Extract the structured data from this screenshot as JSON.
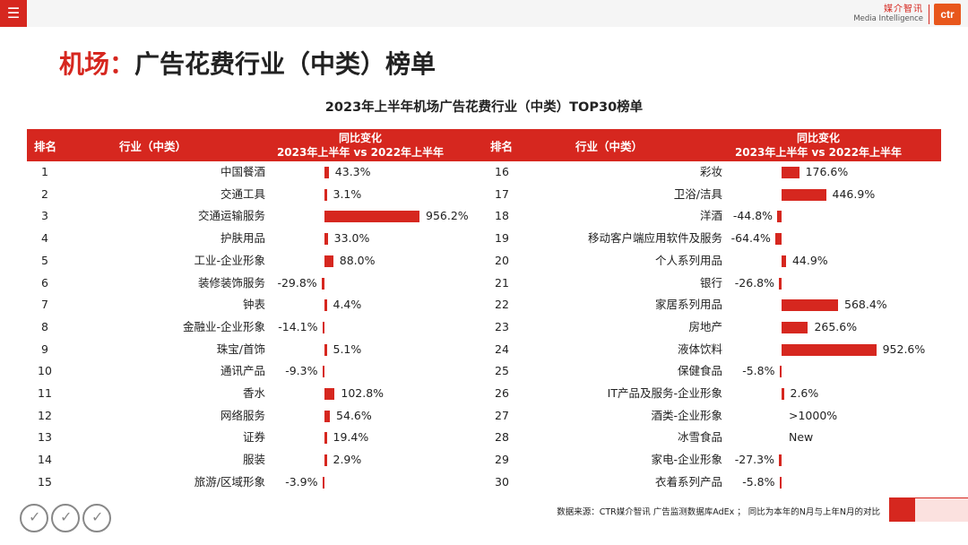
{
  "header": {
    "menu_icon": "hamburger-icon",
    "logo_cn": "媒介智讯",
    "logo_en": "Media Intelligence",
    "logo_mark": "ctr"
  },
  "title": {
    "accent": "机场：",
    "rest": "广告花费行业（中类）榜单"
  },
  "table_title": "2023年上半年机场广告花费行业（中类）TOP30榜单",
  "columns": {
    "rank": "排名",
    "industry": "行业（中类）",
    "change_line1": "同比变化",
    "change_line2": "2023年上半年 vs 2022年上半年"
  },
  "left_rows": [
    {
      "rank": "1",
      "industry": "中国餐酒",
      "value": "43.3%",
      "pct": 43.3
    },
    {
      "rank": "2",
      "industry": "交通工具",
      "value": "3.1%",
      "pct": 3.1
    },
    {
      "rank": "3",
      "industry": "交通运输服务",
      "value": "956.2%",
      "pct": 956.2
    },
    {
      "rank": "4",
      "industry": "护肤用品",
      "value": "33.0%",
      "pct": 33.0
    },
    {
      "rank": "5",
      "industry": "工业-企业形象",
      "value": "88.0%",
      "pct": 88.0
    },
    {
      "rank": "6",
      "industry": "装修装饰服务",
      "value": "-29.8%",
      "pct": -29.8
    },
    {
      "rank": "7",
      "industry": "钟表",
      "value": "4.4%",
      "pct": 4.4
    },
    {
      "rank": "8",
      "industry": "金融业-企业形象",
      "value": "-14.1%",
      "pct": -14.1
    },
    {
      "rank": "9",
      "industry": "珠宝/首饰",
      "value": "5.1%",
      "pct": 5.1
    },
    {
      "rank": "10",
      "industry": "通讯产品",
      "value": "-9.3%",
      "pct": -9.3
    },
    {
      "rank": "11",
      "industry": "香水",
      "value": "102.8%",
      "pct": 102.8
    },
    {
      "rank": "12",
      "industry": "网络服务",
      "value": "54.6%",
      "pct": 54.6
    },
    {
      "rank": "13",
      "industry": "证券",
      "value": "19.4%",
      "pct": 19.4
    },
    {
      "rank": "14",
      "industry": "服装",
      "value": "2.9%",
      "pct": 2.9
    },
    {
      "rank": "15",
      "industry": "旅游/区域形象",
      "value": "-3.9%",
      "pct": -3.9
    }
  ],
  "right_rows": [
    {
      "rank": "16",
      "industry": "彩妆",
      "value": "176.6%",
      "pct": 176.6
    },
    {
      "rank": "17",
      "industry": "卫浴/洁具",
      "value": "446.9%",
      "pct": 446.9
    },
    {
      "rank": "18",
      "industry": "洋酒",
      "value": "-44.8%",
      "pct": -44.8
    },
    {
      "rank": "19",
      "industry": "移动客户端应用软件及服务",
      "value": "-64.4%",
      "pct": -64.4
    },
    {
      "rank": "20",
      "industry": "个人系列用品",
      "value": "44.9%",
      "pct": 44.9
    },
    {
      "rank": "21",
      "industry": "银行",
      "value": "-26.8%",
      "pct": -26.8
    },
    {
      "rank": "22",
      "industry": "家居系列用品",
      "value": "568.4%",
      "pct": 568.4
    },
    {
      "rank": "23",
      "industry": "房地产",
      "value": "265.6%",
      "pct": 265.6
    },
    {
      "rank": "24",
      "industry": "液体饮料",
      "value": "952.6%",
      "pct": 952.6
    },
    {
      "rank": "25",
      "industry": "保健食品",
      "value": "-5.8%",
      "pct": -5.8
    },
    {
      "rank": "26",
      "industry": "IT产品及服务-企业形象",
      "value": "2.6%",
      "pct": 2.6
    },
    {
      "rank": "27",
      "industry": "酒类-企业形象",
      "value": ">1000%",
      "pct": null
    },
    {
      "rank": "28",
      "industry": "冰雪食品",
      "value": "New",
      "pct": null
    },
    {
      "rank": "29",
      "industry": "家电-企业形象",
      "value": "-27.3%",
      "pct": -27.3
    },
    {
      "rank": "30",
      "industry": "衣着系列产品",
      "value": "-5.8%",
      "pct": -5.8
    }
  ],
  "footer": {
    "note": "数据来源：CTR媒介智讯 广告监测数据库AdEx ； 同比为本年的N月与上年N月的对比",
    "cert_icon": "certification-badge-icon"
  },
  "colors": {
    "accent": "#d6271f"
  }
}
